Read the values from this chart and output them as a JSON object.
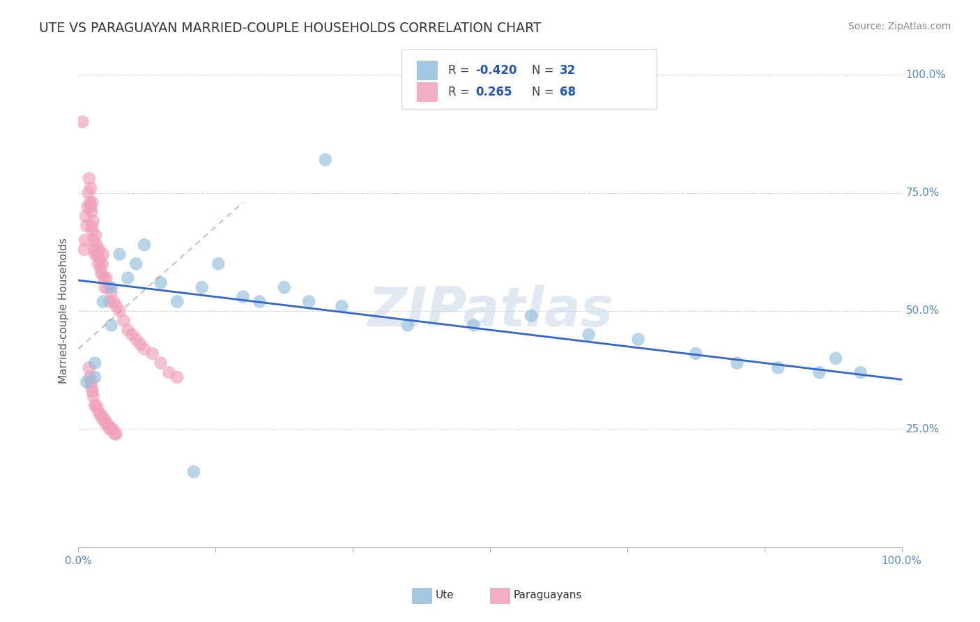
{
  "title": "UTE VS PARAGUAYAN MARRIED-COUPLE HOUSEHOLDS CORRELATION CHART",
  "source": "Source: ZipAtlas.com",
  "ylabel": "Married-couple Households",
  "y_ticks": [
    0.0,
    0.25,
    0.5,
    0.75,
    1.0
  ],
  "y_tick_labels_right": [
    "",
    "25.0%",
    "50.0%",
    "75.0%",
    "100.0%"
  ],
  "x_ticks": [
    0.0,
    0.1667,
    0.3333,
    0.5,
    0.6667,
    0.8333,
    1.0
  ],
  "x_tick_labels": [
    "0.0%",
    "",
    "",
    "",
    "",
    "",
    "100.0%"
  ],
  "ute_R": "-0.420",
  "ute_N": "32",
  "para_R": "0.265",
  "para_N": "68",
  "ute_color": "#93bfdd",
  "paraguayan_color": "#f0a0b8",
  "ute_trend_color": "#3366cc",
  "paraguayan_trend_color": "#cc6688",
  "watermark": "ZIPatlas",
  "background_color": "#ffffff",
  "ute_scatter_x": [
    0.01,
    0.02,
    0.02,
    0.03,
    0.04,
    0.04,
    0.05,
    0.06,
    0.07,
    0.08,
    0.1,
    0.12,
    0.15,
    0.17,
    0.2,
    0.22,
    0.25,
    0.28,
    0.32,
    0.4,
    0.48,
    0.55,
    0.62,
    0.68,
    0.75,
    0.8,
    0.85,
    0.9,
    0.95,
    0.92,
    0.14,
    0.3
  ],
  "ute_scatter_y": [
    0.35,
    0.36,
    0.39,
    0.52,
    0.47,
    0.55,
    0.62,
    0.57,
    0.6,
    0.64,
    0.56,
    0.52,
    0.55,
    0.6,
    0.53,
    0.52,
    0.55,
    0.52,
    0.51,
    0.47,
    0.47,
    0.49,
    0.45,
    0.44,
    0.41,
    0.39,
    0.38,
    0.37,
    0.37,
    0.4,
    0.16,
    0.82
  ],
  "para_scatter_x": [
    0.005,
    0.007,
    0.008,
    0.009,
    0.01,
    0.011,
    0.012,
    0.013,
    0.014,
    0.015,
    0.015,
    0.016,
    0.016,
    0.017,
    0.017,
    0.018,
    0.018,
    0.019,
    0.02,
    0.021,
    0.022,
    0.023,
    0.024,
    0.025,
    0.026,
    0.027,
    0.028,
    0.029,
    0.03,
    0.031,
    0.032,
    0.034,
    0.036,
    0.038,
    0.04,
    0.043,
    0.046,
    0.05,
    0.055,
    0.06,
    0.065,
    0.07,
    0.075,
    0.08,
    0.09,
    0.1,
    0.11,
    0.12,
    0.013,
    0.014,
    0.015,
    0.016,
    0.017,
    0.018,
    0.02,
    0.022,
    0.024,
    0.026,
    0.028,
    0.03,
    0.032,
    0.034,
    0.036,
    0.038,
    0.04,
    0.042,
    0.044,
    0.046
  ],
  "para_scatter_y": [
    0.9,
    0.63,
    0.65,
    0.7,
    0.68,
    0.72,
    0.75,
    0.78,
    0.73,
    0.76,
    0.72,
    0.68,
    0.71,
    0.73,
    0.67,
    0.69,
    0.65,
    0.63,
    0.62,
    0.66,
    0.64,
    0.62,
    0.6,
    0.63,
    0.61,
    0.59,
    0.58,
    0.6,
    0.62,
    0.57,
    0.55,
    0.57,
    0.55,
    0.52,
    0.54,
    0.52,
    0.51,
    0.5,
    0.48,
    0.46,
    0.45,
    0.44,
    0.43,
    0.42,
    0.41,
    0.39,
    0.37,
    0.36,
    0.38,
    0.36,
    0.35,
    0.34,
    0.33,
    0.32,
    0.3,
    0.3,
    0.29,
    0.28,
    0.28,
    0.27,
    0.27,
    0.26,
    0.26,
    0.25,
    0.25,
    0.25,
    0.24,
    0.24
  ],
  "ute_trend_x0": 0.0,
  "ute_trend_x1": 1.0,
  "ute_trend_y0": 0.565,
  "ute_trend_y1": 0.355,
  "para_trend_x0": 0.0,
  "para_trend_x1": 0.2,
  "para_trend_y0": 0.42,
  "para_trend_y1": 0.73
}
